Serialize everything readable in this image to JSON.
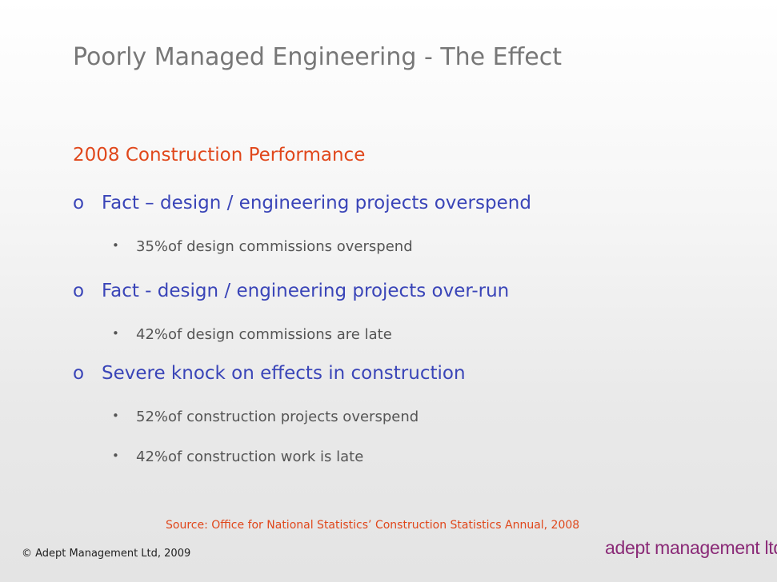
{
  "slide": {
    "title": "Poorly Managed Engineering - The Effect",
    "subtitle": "2008 Construction Performance",
    "facts": [
      {
        "marker": "o",
        "text": "Fact – design / engineering projects overspend",
        "bullets": [
          "35%of design commissions overspend"
        ]
      },
      {
        "marker": "o",
        "text": "Fact - design / engineering projects over-run",
        "bullets": [
          "42%of design commissions are late"
        ]
      },
      {
        "marker": "o",
        "text": "Severe knock on effects in construction",
        "bullets": [
          "52%of construction projects overspend",
          "42%of construction work is late"
        ]
      }
    ],
    "bullet_marker": "•",
    "source": "Source: Office for National Statistics’ Construction Statistics Annual, 2008",
    "copyright": "© Adept Management Ltd, 2009",
    "logo_text": "adept management ltd"
  },
  "colors": {
    "title": "#777777",
    "accent": "#e0471b",
    "fact": "#3a45b8",
    "body": "#555555",
    "logo": "#8a2a77"
  }
}
